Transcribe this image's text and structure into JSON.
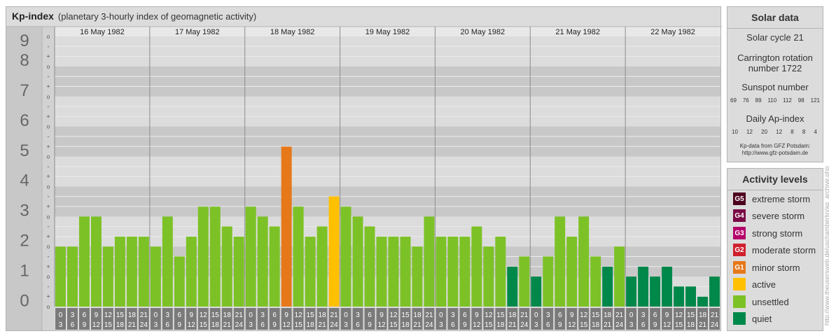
{
  "header": {
    "title": "Kp-index",
    "subtitle": "(planetary 3-hourly index of geomagnetic activity)"
  },
  "solar": {
    "title": "Solar data",
    "cycle": "Solar cycle 21",
    "carrington_line1": "Carrington rotation",
    "carrington_line2": "number 1722",
    "sunspot_label": "Sunspot number",
    "sunspot_numbers": [
      "69",
      "76",
      "89",
      "110",
      "112",
      "98",
      "121"
    ],
    "ap_label": "Daily Ap-index",
    "ap_numbers": [
      "10",
      "12",
      "20",
      "12",
      "8",
      "8",
      "4"
    ],
    "source_line1": "Kp-data from GFZ Potsdam:",
    "source_line2": "http://www.gfz-potsdam.de"
  },
  "activity": {
    "title": "Activity levels",
    "items": [
      {
        "badge": "G5",
        "label": "extreme storm",
        "color": "#4c001e"
      },
      {
        "badge": "G4",
        "label": "severe storm",
        "color": "#7a0a46"
      },
      {
        "badge": "G3",
        "label": "strong storm",
        "color": "#b4006a"
      },
      {
        "badge": "G2",
        "label": "moderate storm",
        "color": "#d0202e"
      },
      {
        "badge": "G1",
        "label": "minor storm",
        "color": "#e6781a"
      },
      {
        "badge": "",
        "label": "active",
        "color": "#ffc000"
      },
      {
        "badge": "",
        "label": "unsettled",
        "color": "#7cc226"
      },
      {
        "badge": "",
        "label": "quiet",
        "color": "#00884a"
      }
    ]
  },
  "watermark": "http://www.theusersweb.de/uschamberlin/ap_archive.php",
  "chart_data": {
    "type": "bar",
    "title": "Kp-index",
    "ylim": [
      0,
      9
    ],
    "y_ticks": [
      "0",
      "1",
      "2",
      "3",
      "4",
      "5",
      "6",
      "7",
      "8",
      "9"
    ],
    "minor_marks": [
      "o",
      "+",
      "-"
    ],
    "days": [
      "16 May 1982",
      "17 May 1982",
      "18 May 1982",
      "19 May 1982",
      "20 May 1982",
      "21 May 1982",
      "22 May 1982"
    ],
    "interval_start": [
      "0",
      "3",
      "6",
      "9",
      "12",
      "15",
      "18",
      "21"
    ],
    "interval_end": [
      "3",
      "6",
      "9",
      "12",
      "15",
      "18",
      "21",
      "24"
    ],
    "series": [
      {
        "values": [
          [
            2.0,
            2.0,
            3.0,
            3.0,
            2.0,
            2.33,
            2.33,
            2.33
          ],
          [
            2.0,
            3.0,
            1.67,
            2.33,
            3.33,
            3.33,
            2.67,
            2.33
          ],
          [
            3.33,
            3.0,
            2.67,
            5.33,
            3.33,
            2.33,
            2.67,
            3.67
          ],
          [
            3.33,
            3.0,
            2.67,
            2.33,
            2.33,
            2.33,
            2.0,
            3.0
          ],
          [
            2.33,
            2.33,
            2.33,
            2.67,
            2.0,
            2.33,
            1.33,
            1.67
          ],
          [
            1.0,
            1.67,
            3.0,
            2.33,
            3.0,
            1.67,
            1.33,
            2.0
          ],
          [
            1.0,
            1.33,
            1.0,
            1.33,
            0.67,
            0.67,
            0.33,
            1.0
          ]
        ]
      }
    ],
    "colors": {
      "quiet": "#00884a",
      "unsettled": "#7cc226",
      "active": "#ffc000",
      "minor_storm": "#e6781a"
    },
    "grid": true
  }
}
